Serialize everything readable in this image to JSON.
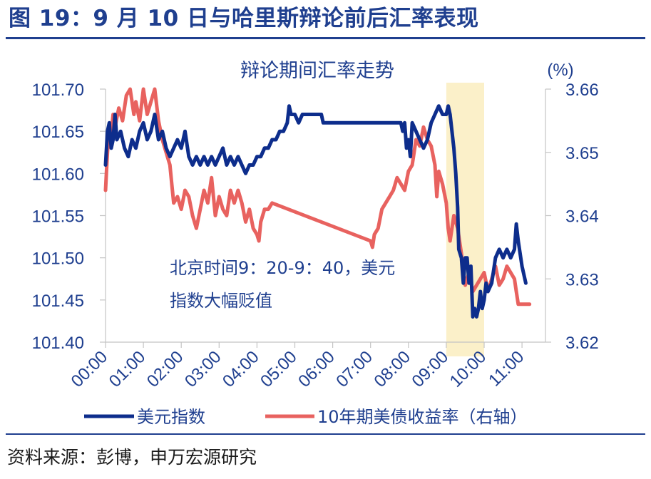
{
  "figure_title": "图 19：9 月 10 日与哈里斯辩论前后汇率表现",
  "source": "资料来源：彭博，申万宏源研究",
  "colors": {
    "accent": "#1f3f8f",
    "usd": "#0d2d8c",
    "yield": "#e8625f",
    "highlight": "#fbf0c9"
  },
  "chart_data": {
    "type": "line",
    "title": "辩论期间汇率走势",
    "y2_unit": "(%)",
    "x_ticks": [
      "00:00",
      "01:00",
      "02:00",
      "03:00",
      "04:00",
      "05:00",
      "06:00",
      "07:00",
      "08:00",
      "09:00",
      "10:00",
      "11:00"
    ],
    "ylim": [
      101.4,
      101.7
    ],
    "y_ticks": [
      "101.70",
      "101.65",
      "101.60",
      "101.55",
      "101.50",
      "101.45",
      "101.40"
    ],
    "y2lim": [
      3.62,
      3.66
    ],
    "y2_ticks": [
      "3.66",
      "3.65",
      "3.64",
      "3.63",
      "3.62"
    ],
    "highlight_range": [
      "09:00",
      "10:00"
    ],
    "annotation_line1": "北京时间9：20-9：40，美元",
    "annotation_line2": "指数大幅贬值",
    "series": [
      {
        "name": "美元指数",
        "axis": "left",
        "points": [
          [
            0.0,
            101.61
          ],
          [
            0.05,
            101.65
          ],
          [
            0.1,
            101.66
          ],
          [
            0.15,
            101.63
          ],
          [
            0.2,
            101.64
          ],
          [
            0.25,
            101.67
          ],
          [
            0.3,
            101.64
          ],
          [
            0.4,
            101.65
          ],
          [
            0.5,
            101.63
          ],
          [
            0.6,
            101.62
          ],
          [
            0.7,
            101.64
          ],
          [
            0.8,
            101.63
          ],
          [
            0.9,
            101.65
          ],
          [
            1.0,
            101.66
          ],
          [
            1.1,
            101.64
          ],
          [
            1.2,
            101.65
          ],
          [
            1.3,
            101.67
          ],
          [
            1.4,
            101.64
          ],
          [
            1.5,
            101.65
          ],
          [
            1.6,
            101.63
          ],
          [
            1.7,
            101.62
          ],
          [
            1.8,
            101.63
          ],
          [
            1.9,
            101.64
          ],
          [
            2.0,
            101.63
          ],
          [
            2.1,
            101.65
          ],
          [
            2.2,
            101.62
          ],
          [
            2.3,
            101.61
          ],
          [
            2.4,
            101.62
          ],
          [
            2.5,
            101.61
          ],
          [
            2.6,
            101.62
          ],
          [
            2.7,
            101.61
          ],
          [
            2.8,
            101.62
          ],
          [
            2.9,
            101.61
          ],
          [
            3.0,
            101.62
          ],
          [
            3.1,
            101.63
          ],
          [
            3.2,
            101.61
          ],
          [
            3.3,
            101.62
          ],
          [
            3.4,
            101.61
          ],
          [
            3.5,
            101.62
          ],
          [
            3.6,
            101.61
          ],
          [
            3.7,
            101.6
          ],
          [
            3.8,
            101.61
          ],
          [
            3.9,
            101.61
          ],
          [
            4.0,
            101.62
          ],
          [
            4.1,
            101.62
          ],
          [
            4.2,
            101.63
          ],
          [
            4.3,
            101.63
          ],
          [
            4.4,
            101.64
          ],
          [
            4.5,
            101.64
          ],
          [
            4.6,
            101.65
          ],
          [
            4.7,
            101.65
          ],
          [
            4.8,
            101.66
          ],
          [
            4.85,
            101.68
          ],
          [
            4.9,
            101.67
          ],
          [
            5.0,
            101.67
          ],
          [
            5.1,
            101.66
          ],
          [
            5.2,
            101.67
          ],
          [
            5.3,
            101.67
          ],
          [
            5.4,
            101.67
          ],
          [
            5.5,
            101.67
          ],
          [
            5.6,
            101.67
          ],
          [
            5.7,
            101.67
          ],
          [
            5.75,
            101.66
          ],
          [
            5.8,
            101.66
          ],
          [
            6.0,
            101.66
          ],
          [
            6.5,
            101.66
          ],
          [
            7.0,
            101.66
          ],
          [
            7.5,
            101.66
          ],
          [
            7.8,
            101.66
          ],
          [
            7.85,
            101.65
          ],
          [
            7.9,
            101.66
          ],
          [
            7.95,
            101.63
          ],
          [
            8.0,
            101.64
          ],
          [
            8.05,
            101.62
          ],
          [
            8.1,
            101.66
          ],
          [
            8.2,
            101.65
          ],
          [
            8.3,
            101.64
          ],
          [
            8.4,
            101.63
          ],
          [
            8.5,
            101.64
          ],
          [
            8.6,
            101.66
          ],
          [
            8.7,
            101.67
          ],
          [
            8.8,
            101.68
          ],
          [
            8.9,
            101.67
          ],
          [
            9.0,
            101.67
          ],
          [
            9.05,
            101.68
          ],
          [
            9.1,
            101.67
          ],
          [
            9.2,
            101.63
          ],
          [
            9.25,
            101.6
          ],
          [
            9.3,
            101.56
          ],
          [
            9.33,
            101.51
          ],
          [
            9.4,
            101.5
          ],
          [
            9.45,
            101.47
          ],
          [
            9.5,
            101.5
          ],
          [
            9.55,
            101.5
          ],
          [
            9.6,
            101.47
          ],
          [
            9.65,
            101.49
          ],
          [
            9.7,
            101.43
          ],
          [
            9.75,
            101.44
          ],
          [
            9.8,
            101.43
          ],
          [
            9.85,
            101.44
          ],
          [
            9.9,
            101.46
          ],
          [
            9.95,
            101.44
          ],
          [
            10.0,
            101.45
          ],
          [
            10.05,
            101.47
          ],
          [
            10.1,
            101.46
          ],
          [
            10.2,
            101.47
          ],
          [
            10.3,
            101.5
          ],
          [
            10.4,
            101.51
          ],
          [
            10.5,
            101.5
          ],
          [
            10.6,
            101.51
          ],
          [
            10.7,
            101.5
          ],
          [
            10.8,
            101.51
          ],
          [
            10.85,
            101.54
          ],
          [
            10.9,
            101.52
          ],
          [
            11.0,
            101.49
          ],
          [
            11.1,
            101.47
          ]
        ]
      },
      {
        "name": "10年期美债收益率（右轴）",
        "axis": "right",
        "points": [
          [
            0.0,
            3.644
          ],
          [
            0.05,
            3.65
          ],
          [
            0.1,
            3.654
          ],
          [
            0.15,
            3.653
          ],
          [
            0.2,
            3.656
          ],
          [
            0.25,
            3.654
          ],
          [
            0.35,
            3.657
          ],
          [
            0.45,
            3.655
          ],
          [
            0.55,
            3.659
          ],
          [
            0.65,
            3.66
          ],
          [
            0.75,
            3.656
          ],
          [
            0.8,
            3.658
          ],
          [
            0.9,
            3.655
          ],
          [
            1.0,
            3.66
          ],
          [
            1.1,
            3.656
          ],
          [
            1.2,
            3.658
          ],
          [
            1.3,
            3.66
          ],
          [
            1.4,
            3.655
          ],
          [
            1.5,
            3.652
          ],
          [
            1.6,
            3.65
          ],
          [
            1.7,
            3.648
          ],
          [
            1.75,
            3.645
          ],
          [
            1.8,
            3.642
          ],
          [
            1.9,
            3.643
          ],
          [
            2.0,
            3.641
          ],
          [
            2.1,
            3.644
          ],
          [
            2.2,
            3.643
          ],
          [
            2.3,
            3.64
          ],
          [
            2.4,
            3.638
          ],
          [
            2.5,
            3.641
          ],
          [
            2.6,
            3.644
          ],
          [
            2.7,
            3.642
          ],
          [
            2.8,
            3.646
          ],
          [
            2.9,
            3.64
          ],
          [
            3.0,
            3.643
          ],
          [
            3.1,
            3.641
          ],
          [
            3.2,
            3.64
          ],
          [
            3.3,
            3.644
          ],
          [
            3.4,
            3.642
          ],
          [
            3.5,
            3.644
          ],
          [
            3.6,
            3.642
          ],
          [
            3.7,
            3.639
          ],
          [
            3.8,
            3.641
          ],
          [
            3.9,
            3.638
          ],
          [
            4.0,
            3.637
          ],
          [
            4.05,
            3.636
          ],
          [
            4.1,
            3.639
          ],
          [
            4.2,
            3.641
          ],
          [
            4.3,
            3.641
          ],
          [
            4.4,
            3.642
          ],
          [
            7.0,
            3.636
          ],
          [
            7.05,
            3.635
          ],
          [
            7.1,
            3.637
          ],
          [
            7.2,
            3.638
          ],
          [
            7.3,
            3.641
          ],
          [
            7.4,
            3.642
          ],
          [
            7.5,
            3.643
          ],
          [
            7.6,
            3.644
          ],
          [
            7.7,
            3.646
          ],
          [
            7.8,
            3.645
          ],
          [
            7.9,
            3.644
          ],
          [
            8.0,
            3.647
          ],
          [
            8.1,
            3.648
          ],
          [
            8.2,
            3.652
          ],
          [
            8.3,
            3.651
          ],
          [
            8.4,
            3.654
          ],
          [
            8.5,
            3.652
          ],
          [
            8.6,
            3.651
          ],
          [
            8.7,
            3.648
          ],
          [
            8.75,
            3.643
          ],
          [
            8.8,
            3.647
          ],
          [
            8.9,
            3.645
          ],
          [
            9.0,
            3.642
          ],
          [
            9.05,
            3.638
          ],
          [
            9.1,
            3.636
          ],
          [
            9.2,
            3.64
          ],
          [
            9.3,
            3.638
          ],
          [
            9.4,
            3.634
          ],
          [
            9.45,
            3.631
          ],
          [
            9.5,
            3.629
          ],
          [
            9.6,
            3.631
          ],
          [
            9.7,
            3.628
          ],
          [
            9.8,
            3.629
          ],
          [
            9.9,
            3.63
          ],
          [
            10.0,
            3.631
          ],
          [
            10.1,
            3.628
          ],
          [
            10.2,
            3.63
          ],
          [
            10.3,
            3.632
          ],
          [
            10.4,
            3.629
          ],
          [
            10.5,
            3.63
          ],
          [
            10.6,
            3.632
          ],
          [
            10.7,
            3.631
          ],
          [
            10.8,
            3.63
          ],
          [
            10.85,
            3.628
          ],
          [
            10.9,
            3.626
          ],
          [
            11.0,
            3.626
          ],
          [
            11.1,
            3.626
          ],
          [
            11.2,
            3.626
          ]
        ]
      }
    ]
  }
}
